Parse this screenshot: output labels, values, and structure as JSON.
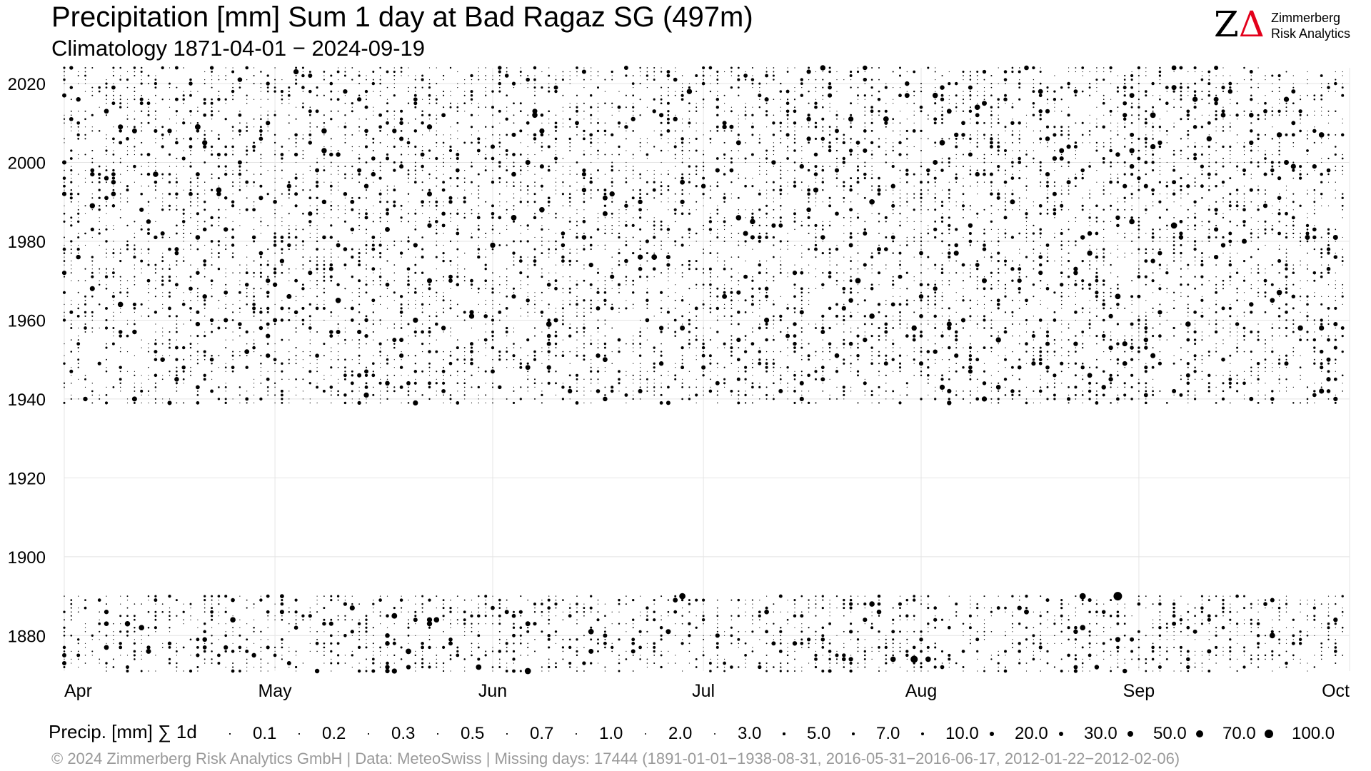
{
  "chart_data": {
    "type": "scatter",
    "title": "Precipitation [mm] Sum 1 day at Bad Ragaz  SG (497m)",
    "subtitle": "Climatology 1871-04-01 − 2024-09-19",
    "x_ticks": [
      "Apr",
      "May",
      "Jun",
      "Jul",
      "Aug",
      "Sep",
      "Oct"
    ],
    "y_ticks": [
      1880,
      1900,
      1920,
      1940,
      1960,
      1980,
      2000,
      2020
    ],
    "ylim": [
      1871,
      2024
    ],
    "xlim": [
      "04-01",
      "10-01"
    ],
    "grid": true,
    "data_periods": [
      [
        1871,
        1890
      ],
      [
        1939,
        2024
      ]
    ],
    "dot_color": "#000000",
    "highlight_events": [
      {
        "date": "1890-08-29",
        "value": 100
      },
      {
        "date": "1874-07-31",
        "value": 70
      },
      {
        "date": "1890-06-28",
        "value": 50
      },
      {
        "date": "1890-08-24",
        "value": 50
      },
      {
        "date": "1871-06-06",
        "value": 50
      },
      {
        "date": "1984-09-06",
        "value": 50
      },
      {
        "date": "1948-06-06",
        "value": 30
      },
      {
        "date": "1966-05-03",
        "value": 30
      },
      {
        "date": "1991-06-17",
        "value": 30
      },
      {
        "date": "2017-08-31",
        "value": 30
      }
    ]
  },
  "legend": {
    "title": "Precip. [mm] ∑ 1d",
    "items": [
      {
        "label": "0.1",
        "value": 0.1
      },
      {
        "label": "0.2",
        "value": 0.2
      },
      {
        "label": "0.3",
        "value": 0.3
      },
      {
        "label": "0.5",
        "value": 0.5
      },
      {
        "label": "0.7",
        "value": 0.7
      },
      {
        "label": "1.0",
        "value": 1.0
      },
      {
        "label": "2.0",
        "value": 2.0
      },
      {
        "label": "3.0",
        "value": 3.0
      },
      {
        "label": "5.0",
        "value": 5.0
      },
      {
        "label": "7.0",
        "value": 7.0
      },
      {
        "label": "10.0",
        "value": 10.0
      },
      {
        "label": "20.0",
        "value": 20.0
      },
      {
        "label": "30.0",
        "value": 30.0
      },
      {
        "label": "50.0",
        "value": 50.0
      },
      {
        "label": "70.0",
        "value": 70.0
      },
      {
        "label": "100.0",
        "value": 100.0
      }
    ]
  },
  "logo": {
    "line1": "Zimmerberg",
    "line2": "Risk Analytics",
    "accent_color": "#e3001b"
  },
  "caption": "©  2024 Zimmerberg Risk Analytics GmbH | Data: MeteoSwiss | Missing days: 17444 (1891-01-01−1938-08-31, 2016-05-31−2016-06-17, 2012-01-22−2012-02-06)"
}
